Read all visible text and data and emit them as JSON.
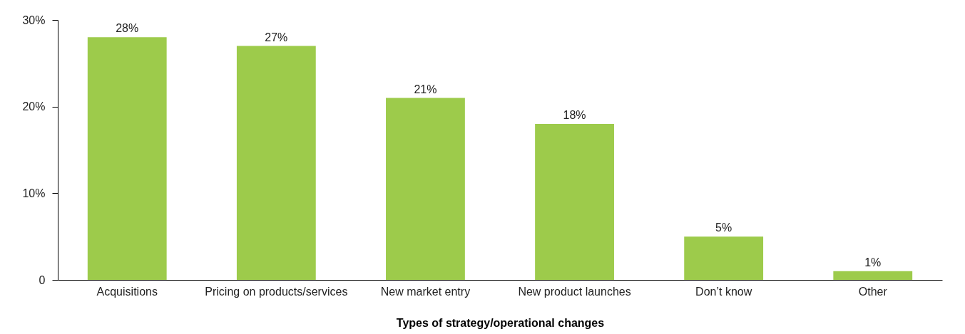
{
  "chart_data": {
    "type": "bar",
    "xlabel": "Types of strategy/operational changes",
    "categories": [
      "Acquisitions",
      "Pricing on products/services",
      "New market entry",
      "New product launches",
      "Don’t know",
      "Other"
    ],
    "values": [
      28,
      27,
      21,
      18,
      5,
      1
    ],
    "value_labels": [
      "28%",
      "27%",
      "21%",
      "18%",
      "5%",
      "1%"
    ],
    "color": "#9dcb4b",
    "ylim": [
      0,
      30
    ],
    "yticks": [
      0,
      {
        "value": 10,
        "label": "10%"
      },
      {
        "value": 20,
        "label": "20%"
      },
      {
        "value": 30,
        "label": "30%"
      }
    ],
    "grid": false
  }
}
